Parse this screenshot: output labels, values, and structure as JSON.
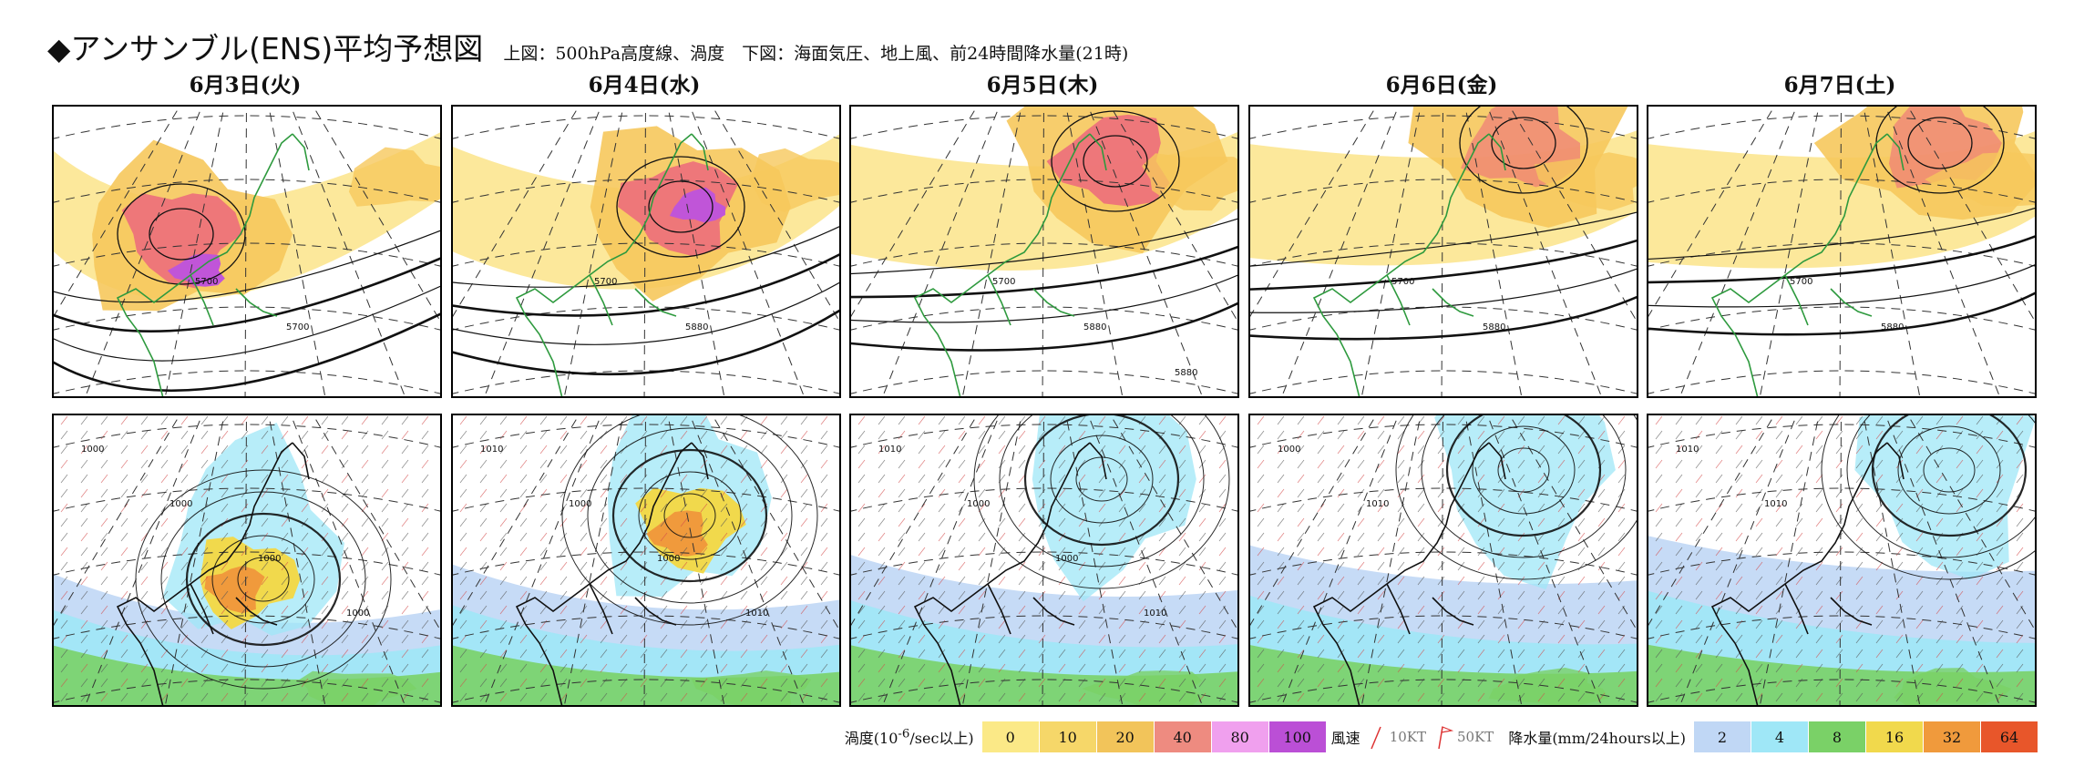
{
  "header": {
    "title": "◆アンサンブル(ENS)平均予想図",
    "subtitle": "上図：500hPa高度線、渦度　下図：海面気圧、地上風、前24時間降水量(21時)"
  },
  "days": [
    {
      "date": "6月3日(火)",
      "h500_labels": [
        "5700",
        "5700"
      ],
      "slp_labels": [
        "1000",
        "1000",
        "1000",
        "1000"
      ]
    },
    {
      "date": "6月4日(水)",
      "h500_labels": [
        "5700",
        "5880"
      ],
      "slp_labels": [
        "1010",
        "1000",
        "1000",
        "1010"
      ]
    },
    {
      "date": "6月5日(木)",
      "h500_labels": [
        "5700",
        "5880",
        "5880"
      ],
      "slp_labels": [
        "1010",
        "1000",
        "1000",
        "1010"
      ]
    },
    {
      "date": "6月6日(金)",
      "h500_labels": [
        "5700",
        "5880"
      ],
      "slp_labels": [
        "1000",
        "1010"
      ]
    },
    {
      "date": "6月7日(土)",
      "h500_labels": [
        "5700",
        "5880"
      ],
      "slp_labels": [
        "1010",
        "1010"
      ]
    }
  ],
  "legend": {
    "vorticity_label": "渦度(10",
    "vorticity_exp": "-6",
    "vorticity_unit": "/sec以上)",
    "vorticity_levels": [
      {
        "value": "0",
        "color": "#fbe987"
      },
      {
        "value": "10",
        "color": "#f6d769"
      },
      {
        "value": "20",
        "color": "#f2c45a"
      },
      {
        "value": "40",
        "color": "#ee8b80"
      },
      {
        "value": "80",
        "color": "#f0a0ee"
      },
      {
        "value": "100",
        "color": "#bb4fd6"
      }
    ],
    "wind_label": "風速",
    "wind_10kt": "10KT",
    "wind_50kt": "50KT",
    "precip_label": "降水量(mm/24hours以上)",
    "precip_levels": [
      {
        "value": "2",
        "color": "#c0d7f5"
      },
      {
        "value": "4",
        "color": "#9fe7f7"
      },
      {
        "value": "8",
        "color": "#7ad167"
      },
      {
        "value": "16",
        "color": "#f1d94c"
      },
      {
        "value": "32",
        "color": "#f09a3c"
      },
      {
        "value": "64",
        "color": "#e8562a"
      }
    ]
  },
  "colors": {
    "vort_light": "#fbe48a",
    "vort_mid": "#f6c85c",
    "vort_red": "#ec6e7c",
    "vort_purple": "#c055d8",
    "coast": "#2e9a3e"
  }
}
